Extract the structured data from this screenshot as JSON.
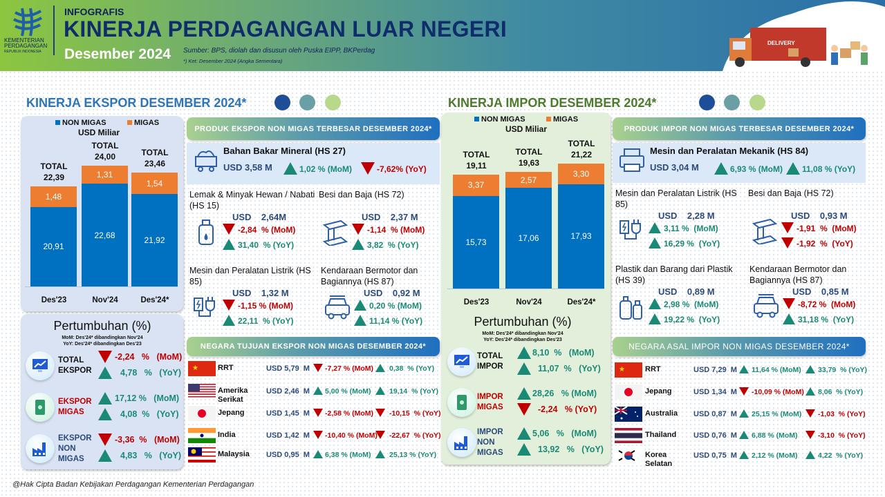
{
  "header": {
    "kicker": "INFOGRAFIS",
    "title": "KINERJA PERDAGANGAN LUAR NEGERI",
    "period": "Desember 2024",
    "source": "Sumber: BPS, diolah dan disusun oleh Puska EIPP, BKPerdag",
    "note": "*) Ket: Desember 2024 (Angka Sementara)",
    "logo_text": [
      "KEMENTERIAN",
      "PERDAGANGAN",
      "REPUBLIK INDONESIA"
    ],
    "truck_label": "DELIVERY"
  },
  "colors": {
    "non_migas": "#0070c0",
    "migas": "#ed7d31",
    "up": "#1a8a76",
    "down": "#c00000"
  },
  "export": {
    "title": "KINERJA EKSPOR DESEMBER 2024*",
    "products_header": "PRODUK EKSPOR NON MIGAS TERBESAR DESEMBER 2024*",
    "top_product": {
      "name": "Bahan Bakar Mineral (HS 27)",
      "value": "USD  3,58 M",
      "mom": "1,02 % (MoM)",
      "mom_dir": "up",
      "yoy": "-7,62% (YoY)",
      "yoy_dir": "down",
      "icon": "coal-cart-icon"
    },
    "products": [
      {
        "name": "Lemak & Minyak Hewan / Nabati (HS 15)",
        "value": "USD    2,64M",
        "mom": "-2,84  % (MoM)",
        "mom_dir": "down",
        "yoy": "31,40  % (YoY)",
        "yoy_dir": "up",
        "icon": "oil-bottle-icon"
      },
      {
        "name": "Besi dan Baja (HS 72)",
        "value": "USD    2,37 M",
        "mom": "-1,14  % (MoM)",
        "mom_dir": "down",
        "yoy": "3,82  % (YoY)",
        "yoy_dir": "up",
        "icon": "steel-beam-icon"
      },
      {
        "name": "Mesin dan Peralatan Listrik (HS 85)",
        "value": "USD    1,32 M",
        "mom": "-1,15 % (MoM)",
        "mom_dir": "down",
        "yoy": "22,11  % (YoY)",
        "yoy_dir": "up",
        "icon": "electric-plug-icon"
      },
      {
        "name": "Kendaraan Bermotor dan Bagiannya (HS 87)",
        "value": "USD    0,92 M",
        "mom": "0,20 % (MoM)",
        "mom_dir": "up",
        "yoy": "11,14 % (YoY)",
        "yoy_dir": "up",
        "icon": "car-icon"
      }
    ],
    "countries_header": "NEGARA TUJUAN EKSPOR NON MIGAS DESEMBER 2024*",
    "countries": [
      {
        "name": "RRT",
        "flag": "china",
        "value": "USD 5,79  M",
        "mom": "-7,27 % (MoM)",
        "mom_dir": "down",
        "yoy": "0,38  % (YoY)",
        "yoy_dir": "up"
      },
      {
        "name": "Amerika Serikat",
        "flag": "usa",
        "value": "USD 2,46  M",
        "mom": "5,00 % (MoM)",
        "mom_dir": "up",
        "yoy": "19,14  % (YoY)",
        "yoy_dir": "up"
      },
      {
        "name": "Jepang",
        "flag": "japan",
        "value": "USD 1,45  M",
        "mom": "-2,58 % (MoM)",
        "mom_dir": "down",
        "yoy": "-10,15  % (YoY)",
        "yoy_dir": "down"
      },
      {
        "name": "India",
        "flag": "india",
        "value": "USD 1,42  M",
        "mom": "-10,40 % (MoM)",
        "mom_dir": "down",
        "yoy": "-22,67  % (YoY)",
        "yoy_dir": "down"
      },
      {
        "name": "Malaysia",
        "flag": "malaysia",
        "value": "USD 0,95  M",
        "mom": "6,38 % (MoM)",
        "mom_dir": "up",
        "yoy": "25,13 % (YoY)",
        "yoy_dir": "up"
      }
    ],
    "growth": {
      "title": "Pertumbuhan (%)",
      "note_mom": "MoM:  Des'24* dibandingkan Nov'24",
      "note_yoy": "YoY: Des'24* dibandingkan Des'23",
      "rows": [
        {
          "label": [
            "TOTAL",
            "EKSPOR"
          ],
          "label_color": "dark",
          "icon": "chart-monitor-icon",
          "mom": "-2,24   %   (MoM)",
          "mom_dir": "down",
          "yoy": "4,78   %   (YoY)",
          "yoy_dir": "up"
        },
        {
          "label": [
            "EKSPOR",
            "MIGAS"
          ],
          "label_color": "red",
          "icon": "oil-barrel-icon",
          "mom": "17,12 %   (MoM)",
          "mom_dir": "up",
          "yoy": "4,08  %   (YoY)",
          "yoy_dir": "up"
        },
        {
          "label": [
            "EKSPOR",
            "NON",
            "MIGAS"
          ],
          "label_color": "blue",
          "icon": "factory-icon",
          "mom": "-3,36  %   (MoM)",
          "mom_dir": "down",
          "yoy": "4,83   %   (YoY)",
          "yoy_dir": "up"
        }
      ]
    }
  },
  "import": {
    "title": "KINERJA IMPOR DESEMBER 2024*",
    "products_header": "PRODUK IMPOR NON MIGAS TERBESAR DESEMBER 2024*",
    "top_product": {
      "name": "Mesin dan Peralatan Mekanik (HS 84)",
      "value": "USD   3,04 M",
      "mom": "6,93 % (MoM)",
      "mom_dir": "up",
      "yoy": "11,08 % (YoY)",
      "yoy_dir": "up",
      "icon": "printer-machine-icon"
    },
    "products": [
      {
        "name": "Mesin dan Peralatan Listrik (HS 85)",
        "value": "USD    2,28 M",
        "mom": "3,11 %  (MoM)",
        "mom_dir": "up",
        "yoy": "16,29 %  (YoY)",
        "yoy_dir": "up",
        "icon": "electric-plug-icon"
      },
      {
        "name": "Besi dan Baja (HS 72)",
        "value": "USD    0,93 M",
        "mom": "-1,91  %  (MoM)",
        "mom_dir": "down",
        "yoy": "-1,92  %  (YoY)",
        "yoy_dir": "down",
        "icon": "steel-beam-icon"
      },
      {
        "name": "Plastik dan Barang dari Plastik (HS 39)",
        "value": "USD    0,89 M",
        "mom": "2,98 %  (MoM)",
        "mom_dir": "up",
        "yoy": "19,22 %  (YoY)",
        "yoy_dir": "up",
        "icon": "plastic-bottles-icon"
      },
      {
        "name": "Kendaraan Bermotor dan Bagiannya (HS 87)",
        "value": "USD    0,85 M",
        "mom": "-8,72 %  (MoM)",
        "mom_dir": "down",
        "yoy": "31,18 %  (YoY)",
        "yoy_dir": "up",
        "icon": "car-icon"
      }
    ],
    "countries_header": "NEGARA ASAL IMPOR NON MIGAS DESEMBER 2024*",
    "countries": [
      {
        "name": "RRT",
        "flag": "china",
        "value": "USD 7,29  M",
        "mom": "11,64 % (MoM)",
        "mom_dir": "up",
        "yoy": "33,79  % (YoY)",
        "yoy_dir": "up"
      },
      {
        "name": "Jepang",
        "flag": "japan",
        "value": "USD 1,34  M",
        "mom": "-10,09 % (MoM)",
        "mom_dir": "down",
        "yoy": "8,06  % (YoY)",
        "yoy_dir": "up"
      },
      {
        "name": "Australia",
        "flag": "australia",
        "value": "USD 0,87  M",
        "mom": "25,15 % (MoM)",
        "mom_dir": "up",
        "yoy": "-1,03  % (YoY)",
        "yoy_dir": "down"
      },
      {
        "name": "Thailand",
        "flag": "thailand",
        "value": "USD 0,76  M",
        "mom": "6,88 % (MoM)",
        "mom_dir": "up",
        "yoy": "-3,10  % (YoY)",
        "yoy_dir": "down"
      },
      {
        "name": "Korea Selatan",
        "flag": "korea",
        "value": "USD 0,75  M",
        "mom": "2,12 % (MoM)",
        "mom_dir": "up",
        "yoy": "4,22  % (YoY)",
        "yoy_dir": "up"
      }
    ],
    "growth": {
      "title": "Pertumbuhan (%)",
      "note_mom": "MoM:  Des'24* dibandingkan Nov'24",
      "note_yoy": "YoY: Des'24* dibandingkan Des'23",
      "rows": [
        {
          "label": [
            "TOTAL",
            "IMPOR"
          ],
          "label_color": "dark",
          "icon": "chart-monitor-icon",
          "mom": "8,10  %   (MoM)",
          "mom_dir": "up",
          "yoy": "11,07  %   (YoY)",
          "yoy_dir": "up"
        },
        {
          "label": [
            "IMPOR",
            "MIGAS"
          ],
          "label_color": "red",
          "icon": "oil-barrel-icon",
          "mom": "28,26   % (MoM)",
          "mom_dir": "up",
          "yoy": "-2,24   % (YoY)",
          "yoy_dir": "down"
        },
        {
          "label": [
            "IMPOR",
            "NON",
            "MIGAS"
          ],
          "label_color": "blue",
          "icon": "factory-icon",
          "mom": "5,06   %   (MoM)",
          "mom_dir": "up",
          "yoy": "13,92   %   (YoY)",
          "yoy_dir": "up"
        }
      ]
    }
  },
  "chart_data": [
    {
      "type": "bar",
      "title": "Ekspor",
      "unit": "USD Miliar",
      "stacked": true,
      "categories": [
        "Des'23",
        "Nov'24",
        "Des'24*"
      ],
      "series": [
        {
          "name": "NON MIGAS",
          "values": [
            20.91,
            22.68,
            21.92
          ]
        },
        {
          "name": "MIGAS",
          "values": [
            1.48,
            1.31,
            1.54
          ]
        }
      ],
      "totals": [
        22.39,
        24.0,
        23.46
      ],
      "total_label": "TOTAL",
      "value_labels": {
        "NON MIGAS": [
          "20,91",
          "22,68",
          "21,92"
        ],
        "MIGAS": [
          "1,48",
          "1,31",
          "1,54"
        ],
        "TOTAL": [
          "22,39",
          "24,00",
          "23,46"
        ]
      },
      "legend": "top"
    },
    {
      "type": "bar",
      "title": "Impor",
      "unit": "USD Miliar",
      "stacked": true,
      "categories": [
        "Des'23",
        "Nov'24",
        "Des'24*"
      ],
      "series": [
        {
          "name": "NON MIGAS",
          "values": [
            15.73,
            17.06,
            17.93
          ]
        },
        {
          "name": "MIGAS",
          "values": [
            3.37,
            2.57,
            3.3
          ]
        }
      ],
      "totals": [
        19.11,
        19.63,
        21.22
      ],
      "total_label": "TOTAL",
      "value_labels": {
        "NON MIGAS": [
          "15,73",
          "17,06",
          "17,93"
        ],
        "MIGAS": [
          "3,37",
          "2,57",
          "3,30"
        ],
        "TOTAL": [
          "19,11",
          "19,63",
          "21,22"
        ]
      },
      "legend": "top"
    }
  ],
  "footer": "@Hak Cipta Badan Kebijakan Perdagangan Kementerian Perdagangan"
}
